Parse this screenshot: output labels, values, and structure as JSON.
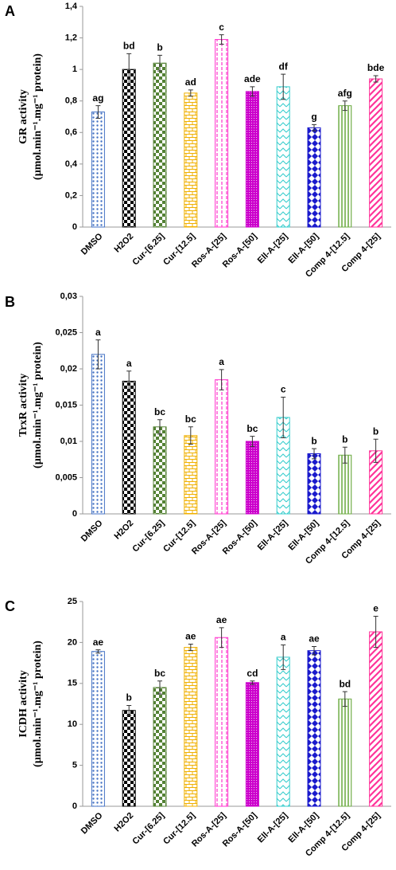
{
  "chart_data": [
    {
      "type": "bar",
      "panel": "A",
      "ylabel": [
        "GR activity",
        "(µmol.min⁻¹.mg⁻¹ protein)"
      ],
      "categories": [
        "DMSO",
        "H2O2",
        "Cur-[6.25]",
        "Cur-[12.5]",
        "Ros-A-[25]",
        "Ros-A-[50]",
        "Ell-A-[25]",
        "Ell-A-[50]",
        "Comp 4-[12.5]",
        "Comp 4-[25]"
      ],
      "values": [
        0.73,
        1.0,
        1.04,
        0.85,
        1.19,
        0.86,
        0.89,
        0.63,
        0.77,
        0.94
      ],
      "errors": [
        0.04,
        0.1,
        0.05,
        0.02,
        0.03,
        0.03,
        0.08,
        0.02,
        0.03,
        0.02
      ],
      "annotations": [
        "ag",
        "bd",
        "b",
        "ad",
        "c",
        "ade",
        "df",
        "g",
        "afg",
        "bde"
      ],
      "colors": [
        "#4472c4",
        "#000000",
        "#548235",
        "#f0b000",
        "#ff33cc",
        "#cc00cc",
        "#33cccc",
        "#1a1acc",
        "#70ad47",
        "#ff3399"
      ],
      "patterns": [
        "dots",
        "checker",
        "checker",
        "brick",
        "dashes",
        "finedots",
        "zigzag",
        "diamonds",
        "vlines",
        "diagonal"
      ],
      "ylim": [
        0,
        1.4
      ],
      "yticks": [
        0,
        {
          "value": 0.2,
          "label": "0,2"
        },
        {
          "value": 0.4,
          "label": "0,4"
        },
        {
          "value": 0.6,
          "label": "0,6"
        },
        {
          "value": 0.8,
          "label": "0,8"
        },
        1,
        {
          "value": 1.2,
          "label": "1,2"
        },
        {
          "value": 1.4,
          "label": "1,4"
        }
      ]
    },
    {
      "type": "bar",
      "panel": "B",
      "ylabel": [
        "TrxR activity",
        "(µmol.min⁻¹.mg⁻¹ protein)"
      ],
      "categories": [
        "DMSO",
        "H2O2",
        "Cur-[6.25]",
        "Cur-[12.5]",
        "Ros-A-[25]",
        "Ros-A-[50]",
        "Ell-A-[25]",
        "Ell-A-[50]",
        "Comp 4-[12.5]",
        "Comp 4-[25]"
      ],
      "values": [
        0.022,
        0.0183,
        0.012,
        0.0108,
        0.0185,
        0.01,
        0.0133,
        0.0083,
        0.0081,
        0.0087
      ],
      "errors": [
        0.002,
        0.0014,
        0.001,
        0.0012,
        0.0014,
        0.0007,
        0.0028,
        0.0007,
        0.0011,
        0.0016
      ],
      "annotations": [
        "a",
        "a",
        "bc",
        "bc",
        "a",
        "bc",
        "c",
        "b",
        "b",
        "b"
      ],
      "colors": [
        "#4472c4",
        "#000000",
        "#548235",
        "#f0b000",
        "#ff33cc",
        "#cc00cc",
        "#33cccc",
        "#1a1acc",
        "#70ad47",
        "#ff3399"
      ],
      "patterns": [
        "dots",
        "checker",
        "checker",
        "brick",
        "dashes",
        "finedots",
        "zigzag",
        "diamonds",
        "vlines",
        "diagonal"
      ],
      "ylim": [
        0,
        0.03
      ],
      "yticks": [
        0,
        {
          "value": 0.005,
          "label": "0,005"
        },
        {
          "value": 0.01,
          "label": "0,01"
        },
        {
          "value": 0.015,
          "label": "0,015"
        },
        {
          "value": 0.02,
          "label": "0,02"
        },
        {
          "value": 0.025,
          "label": "0,025"
        },
        {
          "value": 0.03,
          "label": "0,03"
        }
      ]
    },
    {
      "type": "bar",
      "panel": "C",
      "ylabel": [
        "ICDH activity",
        "(µmol.min⁻¹.mg⁻¹ protein)"
      ],
      "categories": [
        "DMSO",
        "H2O2",
        "Cur-[6.25]",
        "Cur-[12.5]",
        "Ros-A-[25]",
        "Ros-A-[50]",
        "Ell-A-[25]",
        "Ell-A-[50]",
        "Comp 4-[12.5]",
        "Comp 4-[25]"
      ],
      "values": [
        18.9,
        11.7,
        14.5,
        19.4,
        20.6,
        15.1,
        18.2,
        19.0,
        13.1,
        21.3
      ],
      "errors": [
        0.2,
        0.6,
        0.8,
        0.4,
        1.2,
        0.2,
        1.5,
        0.5,
        0.9,
        1.9
      ],
      "annotations": [
        "ae",
        "b",
        "bc",
        "ae",
        "ae",
        "cd",
        "a",
        "ae",
        "bd",
        "e"
      ],
      "colors": [
        "#4472c4",
        "#000000",
        "#548235",
        "#f0b000",
        "#ff33cc",
        "#cc00cc",
        "#33cccc",
        "#1a1acc",
        "#70ad47",
        "#ff3399"
      ],
      "patterns": [
        "dots",
        "checker",
        "checker",
        "brick",
        "dashes",
        "finedots",
        "zigzag",
        "diamonds",
        "vlines",
        "diagonal"
      ],
      "ylim": [
        0,
        25
      ],
      "yticks": [
        0,
        5,
        10,
        15,
        20,
        25
      ]
    }
  ]
}
